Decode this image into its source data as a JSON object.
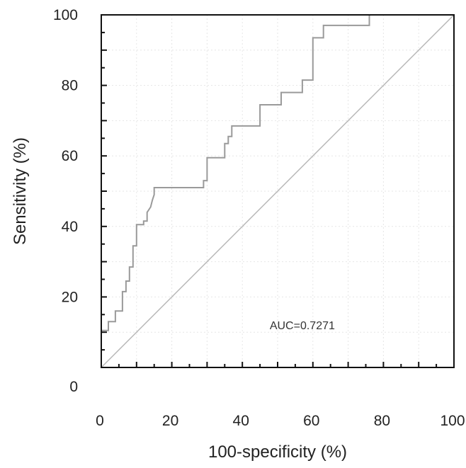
{
  "chart_data": {
    "type": "line",
    "xlabel": "100-specificity (%)",
    "ylabel": "Sensitivity (%)",
    "xlim": [
      0,
      100
    ],
    "ylim": [
      0,
      100
    ],
    "xticks": [
      "0",
      "20",
      "40",
      "60",
      "80",
      "100"
    ],
    "yticks": [
      "0",
      "20",
      "40",
      "60",
      "80",
      "100"
    ],
    "grid": true,
    "annotation": "AUC=0.7271",
    "series": [
      {
        "x": [
          0,
          0,
          2,
          2,
          4,
          4,
          6,
          6,
          7,
          7,
          8,
          8,
          9,
          9,
          10,
          10,
          12,
          12,
          13,
          13,
          14,
          14.5,
          15,
          15,
          29,
          29,
          30,
          30,
          35,
          35,
          36,
          36,
          37,
          37,
          45,
          45,
          51,
          51,
          57,
          57,
          60,
          60,
          63,
          63,
          64,
          64,
          76,
          76
        ],
        "y": [
          0,
          10.5,
          10.5,
          13,
          13,
          16,
          16,
          21.5,
          21.5,
          24.5,
          24.5,
          28.5,
          28.5,
          34.5,
          34.5,
          40.5,
          40.5,
          41.5,
          41.5,
          44,
          45.5,
          47.5,
          49,
          51,
          51,
          53,
          53,
          59.5,
          59.5,
          63.5,
          63.5,
          65.5,
          65.5,
          68.5,
          68.5,
          74.5,
          74.5,
          78,
          78,
          81.5,
          81.5,
          93.5,
          93.5,
          97,
          97,
          97,
          97,
          100
        ],
        "color": "#9a9a9a"
      },
      {
        "x": [
          0,
          100
        ],
        "y": [
          0,
          100
        ],
        "color": "#b5b5b5"
      }
    ]
  }
}
